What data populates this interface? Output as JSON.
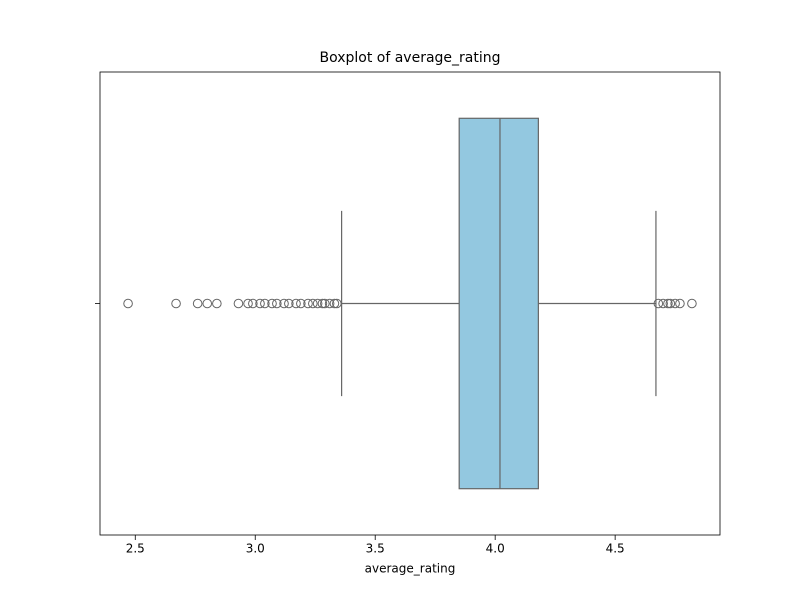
{
  "chart_data": {
    "type": "boxplot",
    "title": "Boxplot of average_rating",
    "xlabel": "average_rating",
    "categories": [
      null
    ],
    "orientation": "horizontal",
    "xlim": [
      2.353,
      4.937
    ],
    "xticks": [
      2.5,
      {
        "value": 3,
        "label": "3.0"
      },
      3.5,
      {
        "value": 4,
        "label": "4.0"
      },
      4.5
    ],
    "color": "#93c8e0",
    "line_color": "#666666",
    "boxes": [
      {
        "whislo": 3.36,
        "q1": 3.85,
        "med": 4.02,
        "q3": 4.18,
        "whishi": 4.67,
        "fliers": [
          2.47,
          2.67,
          2.76,
          2.8,
          2.84,
          2.93,
          2.97,
          2.99,
          3.02,
          3.04,
          3.07,
          3.09,
          3.12,
          3.14,
          3.17,
          3.19,
          3.22,
          3.24,
          3.26,
          3.28,
          3.29,
          3.31,
          3.33,
          3.34,
          4.68,
          4.7,
          4.72,
          4.73,
          4.75,
          4.77,
          4.82
        ]
      }
    ]
  }
}
